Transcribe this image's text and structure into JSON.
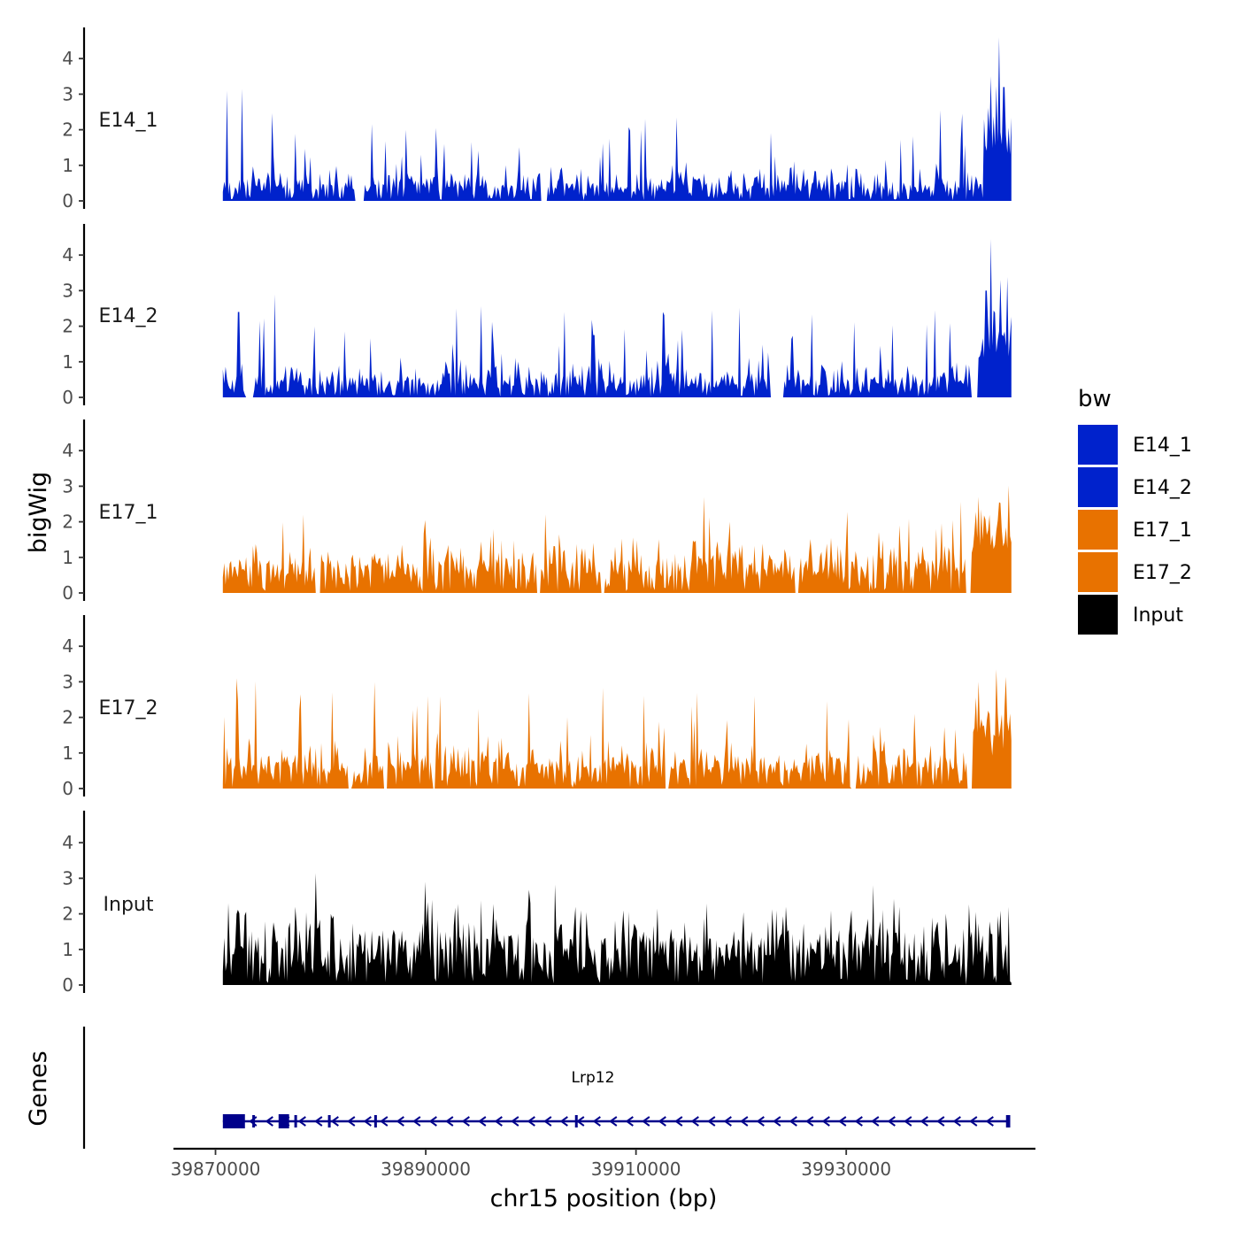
{
  "chart_data": {
    "type": "area",
    "chromosome": "chr15",
    "xlabel": "chr15 position (bp)",
    "ylabel": "bigWig",
    "genes_label": "Genes",
    "xlim": [
      39866000,
      39948000
    ],
    "ylim": [
      0,
      4.9
    ],
    "x_ticks": [
      39870000,
      39890000,
      39910000,
      39930000
    ],
    "x_tick_labels": [
      "39870000",
      "39890000",
      "39910000",
      "39930000"
    ],
    "y_ticks": [
      0,
      1,
      2,
      3,
      4
    ],
    "y_tick_labels": [
      "0",
      "1",
      "2",
      "3",
      "4"
    ],
    "data_range": [
      39870700,
      39945800
    ],
    "legend": {
      "title": "bw",
      "entries": [
        {
          "name": "E14_1",
          "color": "#0022CC"
        },
        {
          "name": "E14_2",
          "color": "#0022CC"
        },
        {
          "name": "E17_1",
          "color": "#E87200"
        },
        {
          "name": "E17_2",
          "color": "#E87200"
        },
        {
          "name": "Input",
          "color": "#000000"
        }
      ]
    },
    "series": [
      {
        "name": "E14_1",
        "color": "#0022CC",
        "baseline": 0.3,
        "noise": 0.55,
        "spike_prob": 0.08,
        "spike_scale": 1.6,
        "gaps": [
          [
            39883200,
            39884100
          ],
          [
            39900900,
            39901600
          ]
        ],
        "peaks": [
          {
            "x": 39871100,
            "y": 3.1
          },
          {
            "x": 39872500,
            "y": 3.15
          },
          {
            "x": 39888100,
            "y": 2.0
          },
          {
            "x": 39891000,
            "y": 2.05
          },
          {
            "x": 39907500,
            "y": 1.75
          },
          {
            "x": 39939000,
            "y": 2.55
          },
          {
            "x": 39941000,
            "y": 2.45
          },
          {
            "x": 39943800,
            "y": 3.5
          },
          {
            "x": 39944500,
            "y": 4.6
          },
          {
            "x": 39945000,
            "y": 3.2
          }
        ],
        "hump": {
          "from": 39943000,
          "to": 39945800,
          "level": 1.4
        }
      },
      {
        "name": "E14_2",
        "color": "#0022CC",
        "baseline": 0.3,
        "noise": 0.6,
        "spike_prob": 0.09,
        "spike_scale": 1.7,
        "gaps": [
          [
            39872900,
            39873600
          ],
          [
            39922800,
            39924100
          ],
          [
            39941900,
            39942500
          ]
        ],
        "peaks": [
          {
            "x": 39872200,
            "y": 2.4
          },
          {
            "x": 39903200,
            "y": 2.4
          },
          {
            "x": 39906000,
            "y": 1.75
          },
          {
            "x": 39914400,
            "y": 1.9
          },
          {
            "x": 39938400,
            "y": 2.45
          },
          {
            "x": 39943300,
            "y": 3.0
          },
          {
            "x": 39943800,
            "y": 4.45
          },
          {
            "x": 39944700,
            "y": 3.3
          }
        ],
        "hump": {
          "from": 39942500,
          "to": 39945800,
          "level": 1.3
        }
      },
      {
        "name": "E17_1",
        "color": "#E87200",
        "baseline": 0.6,
        "noise": 0.7,
        "spike_prob": 0.07,
        "spike_scale": 1.2,
        "gaps": [
          [
            39879500,
            39880000
          ],
          [
            39900500,
            39900900
          ],
          [
            39906600,
            39907000
          ],
          [
            39925100,
            39925500
          ],
          [
            39941300,
            39941900
          ]
        ],
        "peaks": [
          {
            "x": 39889900,
            "y": 2.05
          },
          {
            "x": 39916500,
            "y": 2.7
          },
          {
            "x": 39918900,
            "y": 2.0
          },
          {
            "x": 39935000,
            "y": 1.9
          },
          {
            "x": 39942600,
            "y": 2.7
          },
          {
            "x": 39944500,
            "y": 2.55
          }
        ],
        "hump": {
          "from": 39942000,
          "to": 39945800,
          "level": 1.0
        }
      },
      {
        "name": "E17_2",
        "color": "#E87200",
        "baseline": 0.5,
        "noise": 0.7,
        "spike_prob": 0.08,
        "spike_scale": 1.5,
        "gaps": [
          [
            39882600,
            39883000
          ],
          [
            39886000,
            39886400
          ],
          [
            39890600,
            39890900
          ],
          [
            39912700,
            39913100
          ],
          [
            39930500,
            39930900
          ],
          [
            39941500,
            39942000
          ]
        ],
        "peaks": [
          {
            "x": 39872000,
            "y": 3.1
          },
          {
            "x": 39878100,
            "y": 2.65
          },
          {
            "x": 39890200,
            "y": 2.6
          },
          {
            "x": 39921300,
            "y": 2.6
          },
          {
            "x": 39942600,
            "y": 3.0
          },
          {
            "x": 39944300,
            "y": 3.35
          }
        ],
        "hump": {
          "from": 39942000,
          "to": 39945800,
          "level": 1.2
        }
      },
      {
        "name": "Input",
        "color": "#000000",
        "baseline": 0.9,
        "noise": 0.8,
        "spike_prob": 0.1,
        "spike_scale": 0.8,
        "gaps": [
          [
            39941300,
            39941500
          ]
        ],
        "peaks": [
          {
            "x": 39871200,
            "y": 2.3
          },
          {
            "x": 39877600,
            "y": 2.2
          },
          {
            "x": 39889900,
            "y": 2.9
          },
          {
            "x": 39899900,
            "y": 2.3
          },
          {
            "x": 39904200,
            "y": 2.2
          },
          {
            "x": 39924300,
            "y": 2.2
          },
          {
            "x": 39935000,
            "y": 2.2
          },
          {
            "x": 39945500,
            "y": 2.2
          }
        ],
        "hump": null
      }
    ],
    "gene": {
      "name": "Lrp12",
      "strand": "-",
      "color": "#00008B",
      "start": 39870700,
      "end": 39945600,
      "exons": [
        [
          39870700,
          39872800
        ],
        [
          39873500,
          39873700
        ],
        [
          39876000,
          39877000
        ],
        [
          39877500,
          39877700
        ],
        [
          39880700,
          39880900
        ],
        [
          39885100,
          39885300
        ],
        [
          39904200,
          39904400
        ],
        [
          39945200,
          39945600
        ]
      ]
    }
  }
}
